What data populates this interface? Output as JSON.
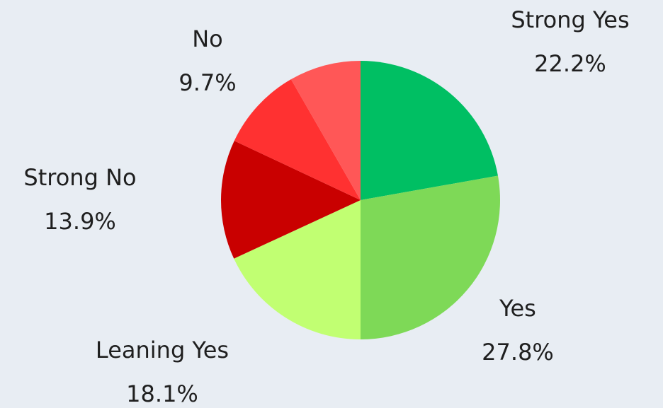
{
  "chart_data": {
    "type": "pie",
    "categories": [
      "Strong Yes",
      "Yes",
      "Leaning Yes",
      "Strong No",
      "No",
      null
    ],
    "values": [
      22.2,
      27.8,
      18.1,
      13.9,
      9.7,
      8.3
    ],
    "value_labels": [
      "22.2%",
      "27.8%",
      "18.1%",
      "13.9%",
      "9.7%",
      null
    ],
    "colors": [
      "#00bf63",
      "#7ed957",
      "#c1ff72",
      "#c90000",
      "#ff3131",
      "#ff5757"
    ]
  }
}
